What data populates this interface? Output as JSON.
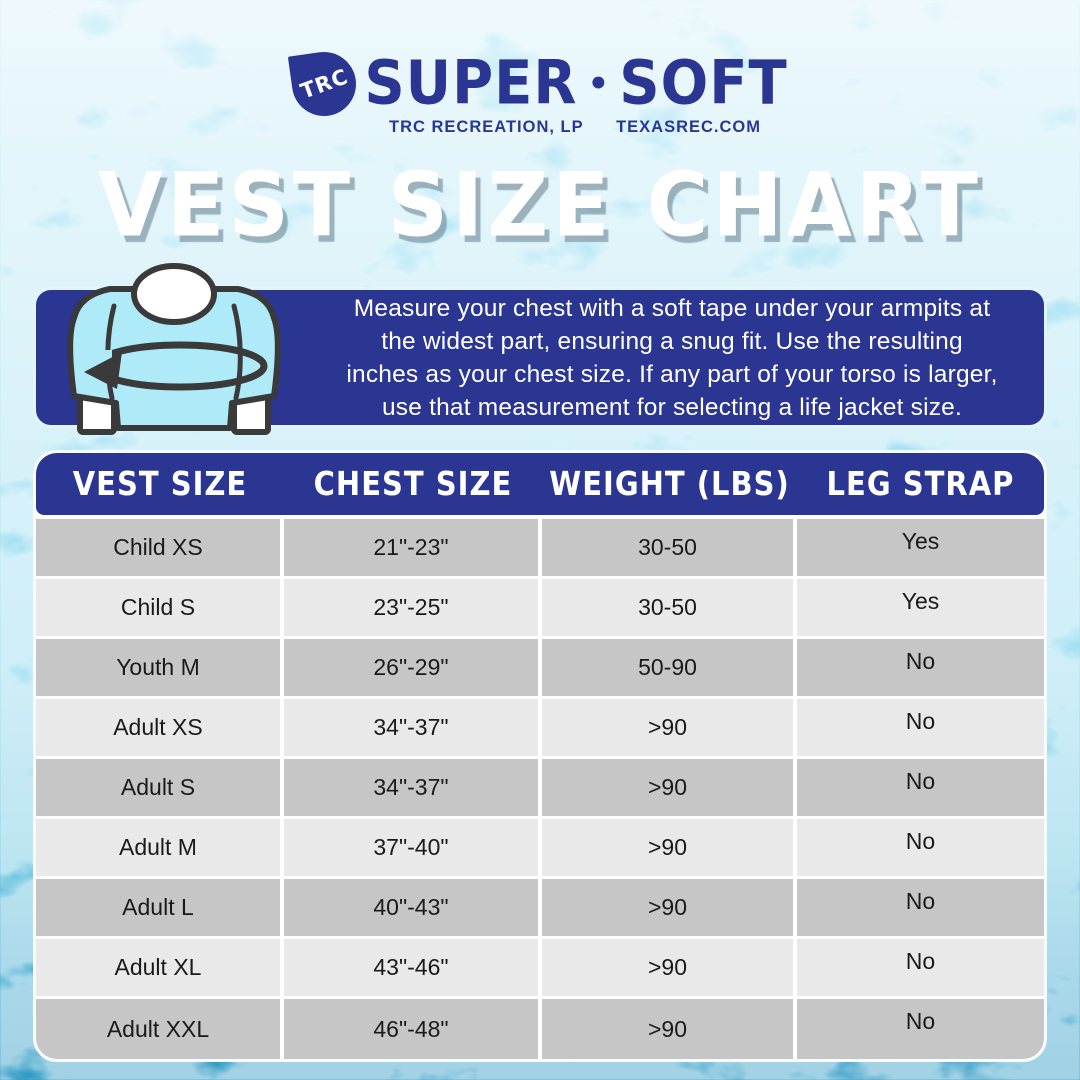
{
  "colors": {
    "navy": "#2b3693",
    "banner_border": "#e2f5fc",
    "row_dark": "#c6c6c6",
    "row_light": "#e9e9e9",
    "cell_text": "#1a1a1a",
    "shirt_fill": "#aeeaf8",
    "illustration_outline": "#3a3a3a",
    "title_color": "#ffffff"
  },
  "logo": {
    "drop_text": "TRC",
    "word1": "SUPER",
    "separator": "•",
    "word2": "SOFT",
    "sub_left": "TRC RECREATION, LP",
    "sub_right": "TEXASREC.COM"
  },
  "title": "VEST SIZE CHART",
  "instructions": {
    "lines": [
      "Measure your chest with a soft tape under your armpits at",
      "the widest part, ensuring a snug fit. Use the resulting",
      "inches as your chest size. If any part of your torso is larger,",
      "use that measurement for selecting a life jacket size."
    ]
  },
  "chart_data": {
    "type": "table",
    "title": "VEST SIZE CHART",
    "columns": [
      "VEST SIZE",
      "CHEST SIZE",
      "WEIGHT (LBS)",
      "LEG STRAP"
    ],
    "rows": [
      [
        "Child XS",
        "21\"-23\"",
        "30-50",
        "Yes"
      ],
      [
        "Child S",
        "23\"-25\"",
        "30-50",
        "Yes"
      ],
      [
        "Youth M",
        "26\"-29\"",
        "50-90",
        "No"
      ],
      [
        "Adult XS",
        "34\"-37\"",
        ">90",
        "No"
      ],
      [
        "Adult S",
        "34\"-37\"",
        ">90",
        "No"
      ],
      [
        "Adult M",
        "37\"-40\"",
        ">90",
        "No"
      ],
      [
        "Adult L",
        "40\"-43\"",
        ">90",
        "No"
      ],
      [
        "Adult XL",
        "43\"-46\"",
        ">90",
        "No"
      ],
      [
        "Adult XXL",
        "46\"-48\"",
        ">90",
        "No"
      ]
    ]
  }
}
